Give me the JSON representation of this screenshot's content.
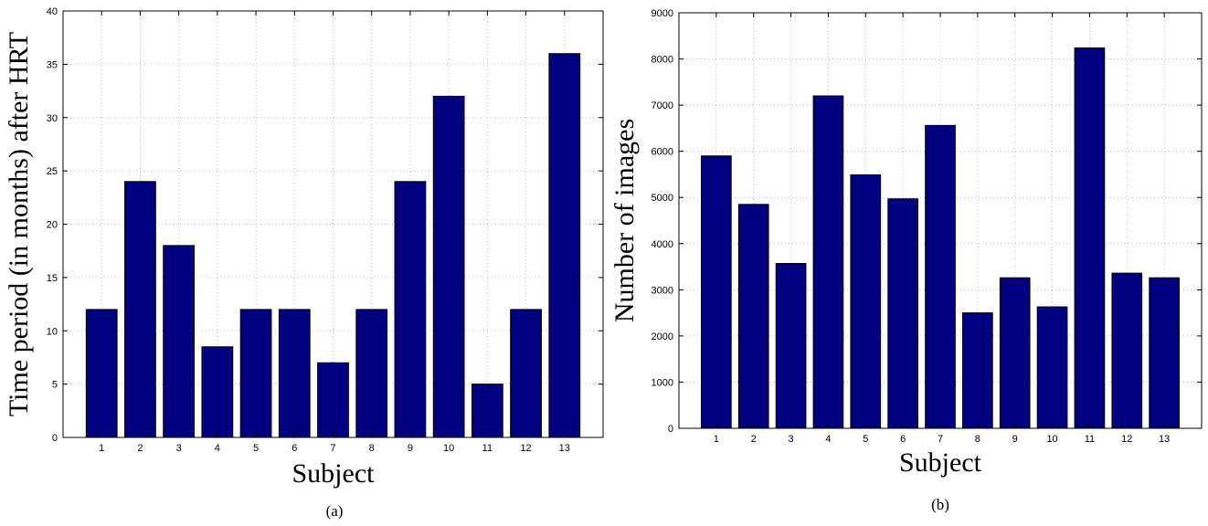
{
  "colors": {
    "bar": "#000080",
    "grid": "#b9b9b9",
    "axis": "#000000"
  },
  "chart_data": [
    {
      "type": "bar",
      "categories": [
        "1",
        "2",
        "3",
        "4",
        "5",
        "6",
        "7",
        "8",
        "9",
        "10",
        "11",
        "12",
        "13"
      ],
      "values": [
        12,
        24,
        18,
        8.5,
        12,
        12,
        7,
        12,
        24,
        32,
        5,
        12,
        36
      ],
      "title": "",
      "xlabel": "Subject",
      "ylabel": "Time period (in months) after HRT",
      "ylim": [
        0,
        40
      ],
      "yticks": [
        "0",
        "5",
        "10",
        "15",
        "20",
        "25",
        "30",
        "35",
        "40"
      ],
      "grid": true,
      "caption": "(a)"
    },
    {
      "type": "bar",
      "categories": [
        "1",
        "2",
        "3",
        "4",
        "5",
        "6",
        "7",
        "8",
        "9",
        "10",
        "11",
        "12",
        "13"
      ],
      "values": [
        5900,
        4850,
        3570,
        7200,
        5490,
        4970,
        6560,
        2500,
        3260,
        2630,
        8240,
        3360,
        3260
      ],
      "title": "",
      "xlabel": "Subject",
      "ylabel": "Number of images",
      "ylim": [
        0,
        9000
      ],
      "yticks": [
        "0",
        "1000",
        "2000",
        "3000",
        "4000",
        "5000",
        "6000",
        "7000",
        "8000",
        "9000"
      ],
      "grid": true,
      "caption": "(b)"
    }
  ]
}
